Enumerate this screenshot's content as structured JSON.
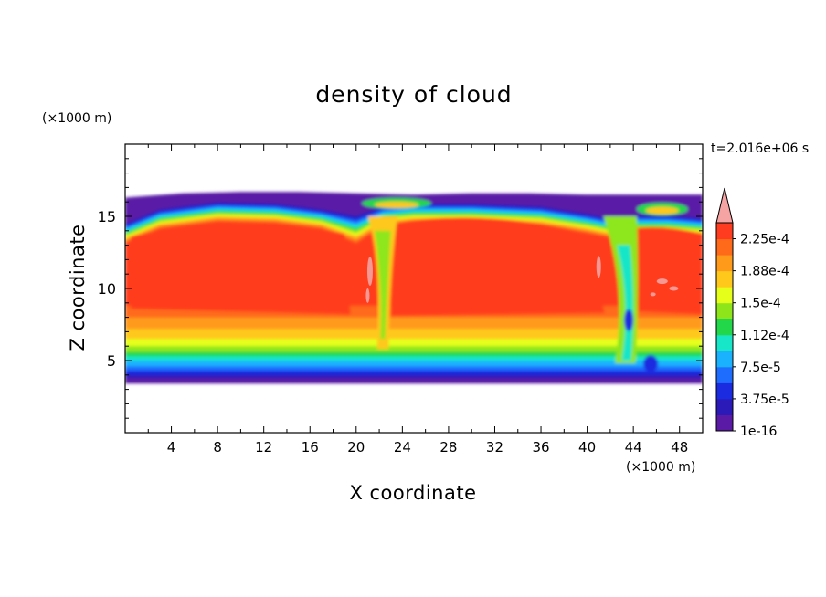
{
  "chart_data": {
    "type": "heatmap",
    "title": "density of cloud",
    "xlabel": "X coordinate",
    "ylabel": "Z coordinate",
    "x_unit": "(×1000 m)",
    "y_unit": "(×1000 m)",
    "time_label": "t=2.016e+06 s",
    "xlim": [
      0,
      50
    ],
    "ylim": [
      0,
      20
    ],
    "x_ticks": [
      "4",
      "8",
      "12",
      "16",
      "20",
      "24",
      "28",
      "32",
      "36",
      "40",
      "44",
      "48"
    ],
    "x_tick_values": [
      4,
      8,
      12,
      16,
      20,
      24,
      28,
      32,
      36,
      40,
      44,
      48
    ],
    "y_ticks": [
      "5",
      "10",
      "15"
    ],
    "y_tick_values": [
      5,
      10,
      15
    ],
    "cloud_base_z": 3.4,
    "cloud_top_z": 16.5,
    "colorbar": {
      "levels": [
        1e-16,
        1.875e-05,
        3.75e-05,
        5.625e-05,
        7.5e-05,
        9.375e-05,
        0.0001125,
        0.00013125,
        0.00015,
        0.00016875,
        0.0001875,
        0.00020625,
        0.000225,
        0.00024375
      ],
      "labels": [
        "1e-16",
        "3.75e-5",
        "7.5e-5",
        "1.12e-4",
        "1.5e-4",
        "1.88e-4",
        "2.25e-4"
      ],
      "label_values": [
        1e-16,
        3.75e-05,
        7.5e-05,
        0.0001125,
        0.00015,
        0.0001875,
        0.000225
      ],
      "colors": [
        "#5a1aa6",
        "#2b1ab8",
        "#1a2be0",
        "#1f6dff",
        "#1ab2ff",
        "#18e6c8",
        "#22d84a",
        "#8ee61a",
        "#e6ff1a",
        "#ffc81a",
        "#ff9a1a",
        "#ff6a1a",
        "#ff3c1f",
        "#f5a3a3"
      ],
      "overflow_color": "#f5a3a3"
    }
  }
}
